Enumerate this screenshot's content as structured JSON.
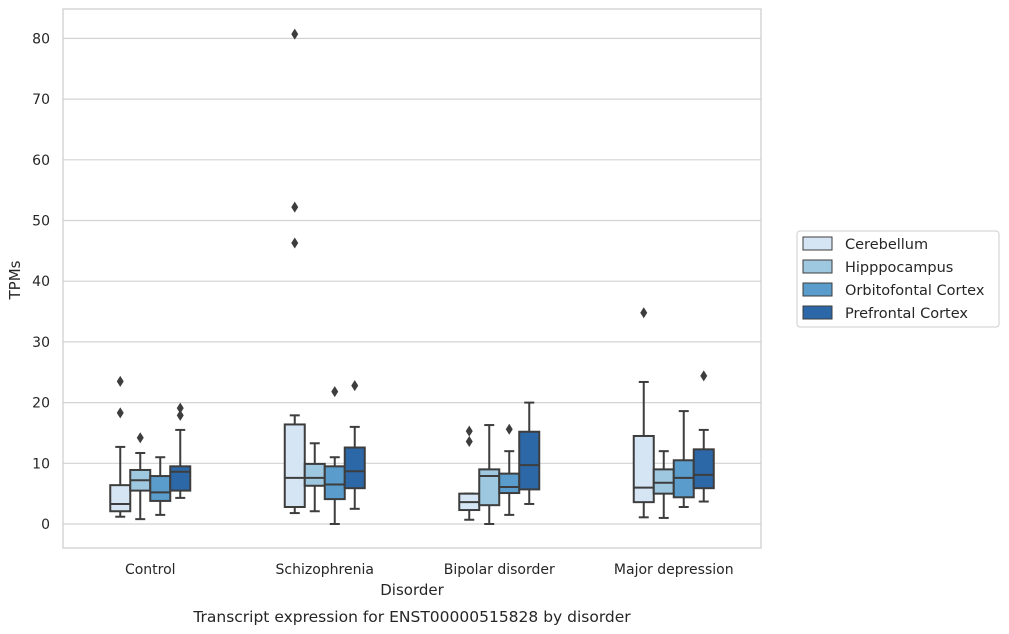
{
  "chart_data": {
    "type": "boxplot",
    "title": "",
    "caption": "Transcript expression for ENST00000515828 by disorder",
    "xlabel": "Disorder",
    "ylabel": "TPMs",
    "ylim": [
      -4,
      85
    ],
    "yticks": [
      0,
      10,
      20,
      30,
      40,
      50,
      60,
      70,
      80
    ],
    "grid": true,
    "legend_position": "right",
    "categories": [
      "Control",
      "Schizophrenia",
      "Bipolar disorder",
      "Major depression"
    ],
    "series": [
      {
        "name": "Cerebellum",
        "color": "#d6e5f4",
        "boxes": [
          {
            "whislo": 1.2,
            "q1": 2.1,
            "med": 3.3,
            "q3": 6.4,
            "whishi": 12.7,
            "fliers": [
              18.3,
              23.5
            ]
          },
          {
            "whislo": 1.8,
            "q1": 2.8,
            "med": 7.6,
            "q3": 16.4,
            "whishi": 17.9,
            "fliers": [
              46.3,
              52.2,
              80.7
            ]
          },
          {
            "whislo": 0.7,
            "q1": 2.3,
            "med": 3.6,
            "q3": 5.0,
            "whishi": 5.0,
            "fliers": [
              13.6,
              15.3
            ]
          },
          {
            "whislo": 1.1,
            "q1": 3.6,
            "med": 6.0,
            "q3": 14.5,
            "whishi": 23.4,
            "fliers": [
              34.8
            ]
          }
        ]
      },
      {
        "name": "Hipppocampus",
        "color": "#9ec8e0",
        "boxes": [
          {
            "whislo": 0.8,
            "q1": 5.5,
            "med": 7.2,
            "q3": 8.9,
            "whishi": 11.7,
            "fliers": [
              14.2
            ]
          },
          {
            "whislo": 2.1,
            "q1": 6.3,
            "med": 7.6,
            "q3": 9.9,
            "whishi": 13.3,
            "fliers": []
          },
          {
            "whislo": 0.0,
            "q1": 3.1,
            "med": 7.9,
            "q3": 9.0,
            "whishi": 16.3,
            "fliers": []
          },
          {
            "whislo": 1.0,
            "q1": 5.0,
            "med": 6.8,
            "q3": 9.0,
            "whishi": 12.0,
            "fliers": []
          }
        ]
      },
      {
        "name": "Orbitofontal Cortex",
        "color": "#5a9ccb",
        "boxes": [
          {
            "whislo": 1.5,
            "q1": 3.8,
            "med": 5.2,
            "q3": 7.9,
            "whishi": 11.0,
            "fliers": []
          },
          {
            "whislo": 0.0,
            "q1": 4.1,
            "med": 6.5,
            "q3": 9.5,
            "whishi": 11.0,
            "fliers": [
              21.8
            ]
          },
          {
            "whislo": 1.5,
            "q1": 5.1,
            "med": 6.1,
            "q3": 8.3,
            "whishi": 12.0,
            "fliers": [
              15.6
            ]
          },
          {
            "whislo": 2.8,
            "q1": 4.4,
            "med": 7.6,
            "q3": 10.5,
            "whishi": 18.6,
            "fliers": []
          }
        ]
      },
      {
        "name": "Prefrontal Cortex",
        "color": "#2c68a8",
        "boxes": [
          {
            "whislo": 4.3,
            "q1": 5.5,
            "med": 8.6,
            "q3": 9.5,
            "whishi": 15.5,
            "fliers": [
              17.9,
              19.1
            ]
          },
          {
            "whislo": 2.5,
            "q1": 5.9,
            "med": 8.7,
            "q3": 12.6,
            "whishi": 16.0,
            "fliers": [
              22.8
            ]
          },
          {
            "whislo": 3.3,
            "q1": 5.7,
            "med": 9.7,
            "q3": 15.2,
            "whishi": 20.0,
            "fliers": []
          },
          {
            "whislo": 3.7,
            "q1": 5.9,
            "med": 8.1,
            "q3": 12.3,
            "whishi": 15.5,
            "fliers": [
              24.4
            ]
          }
        ]
      }
    ]
  }
}
